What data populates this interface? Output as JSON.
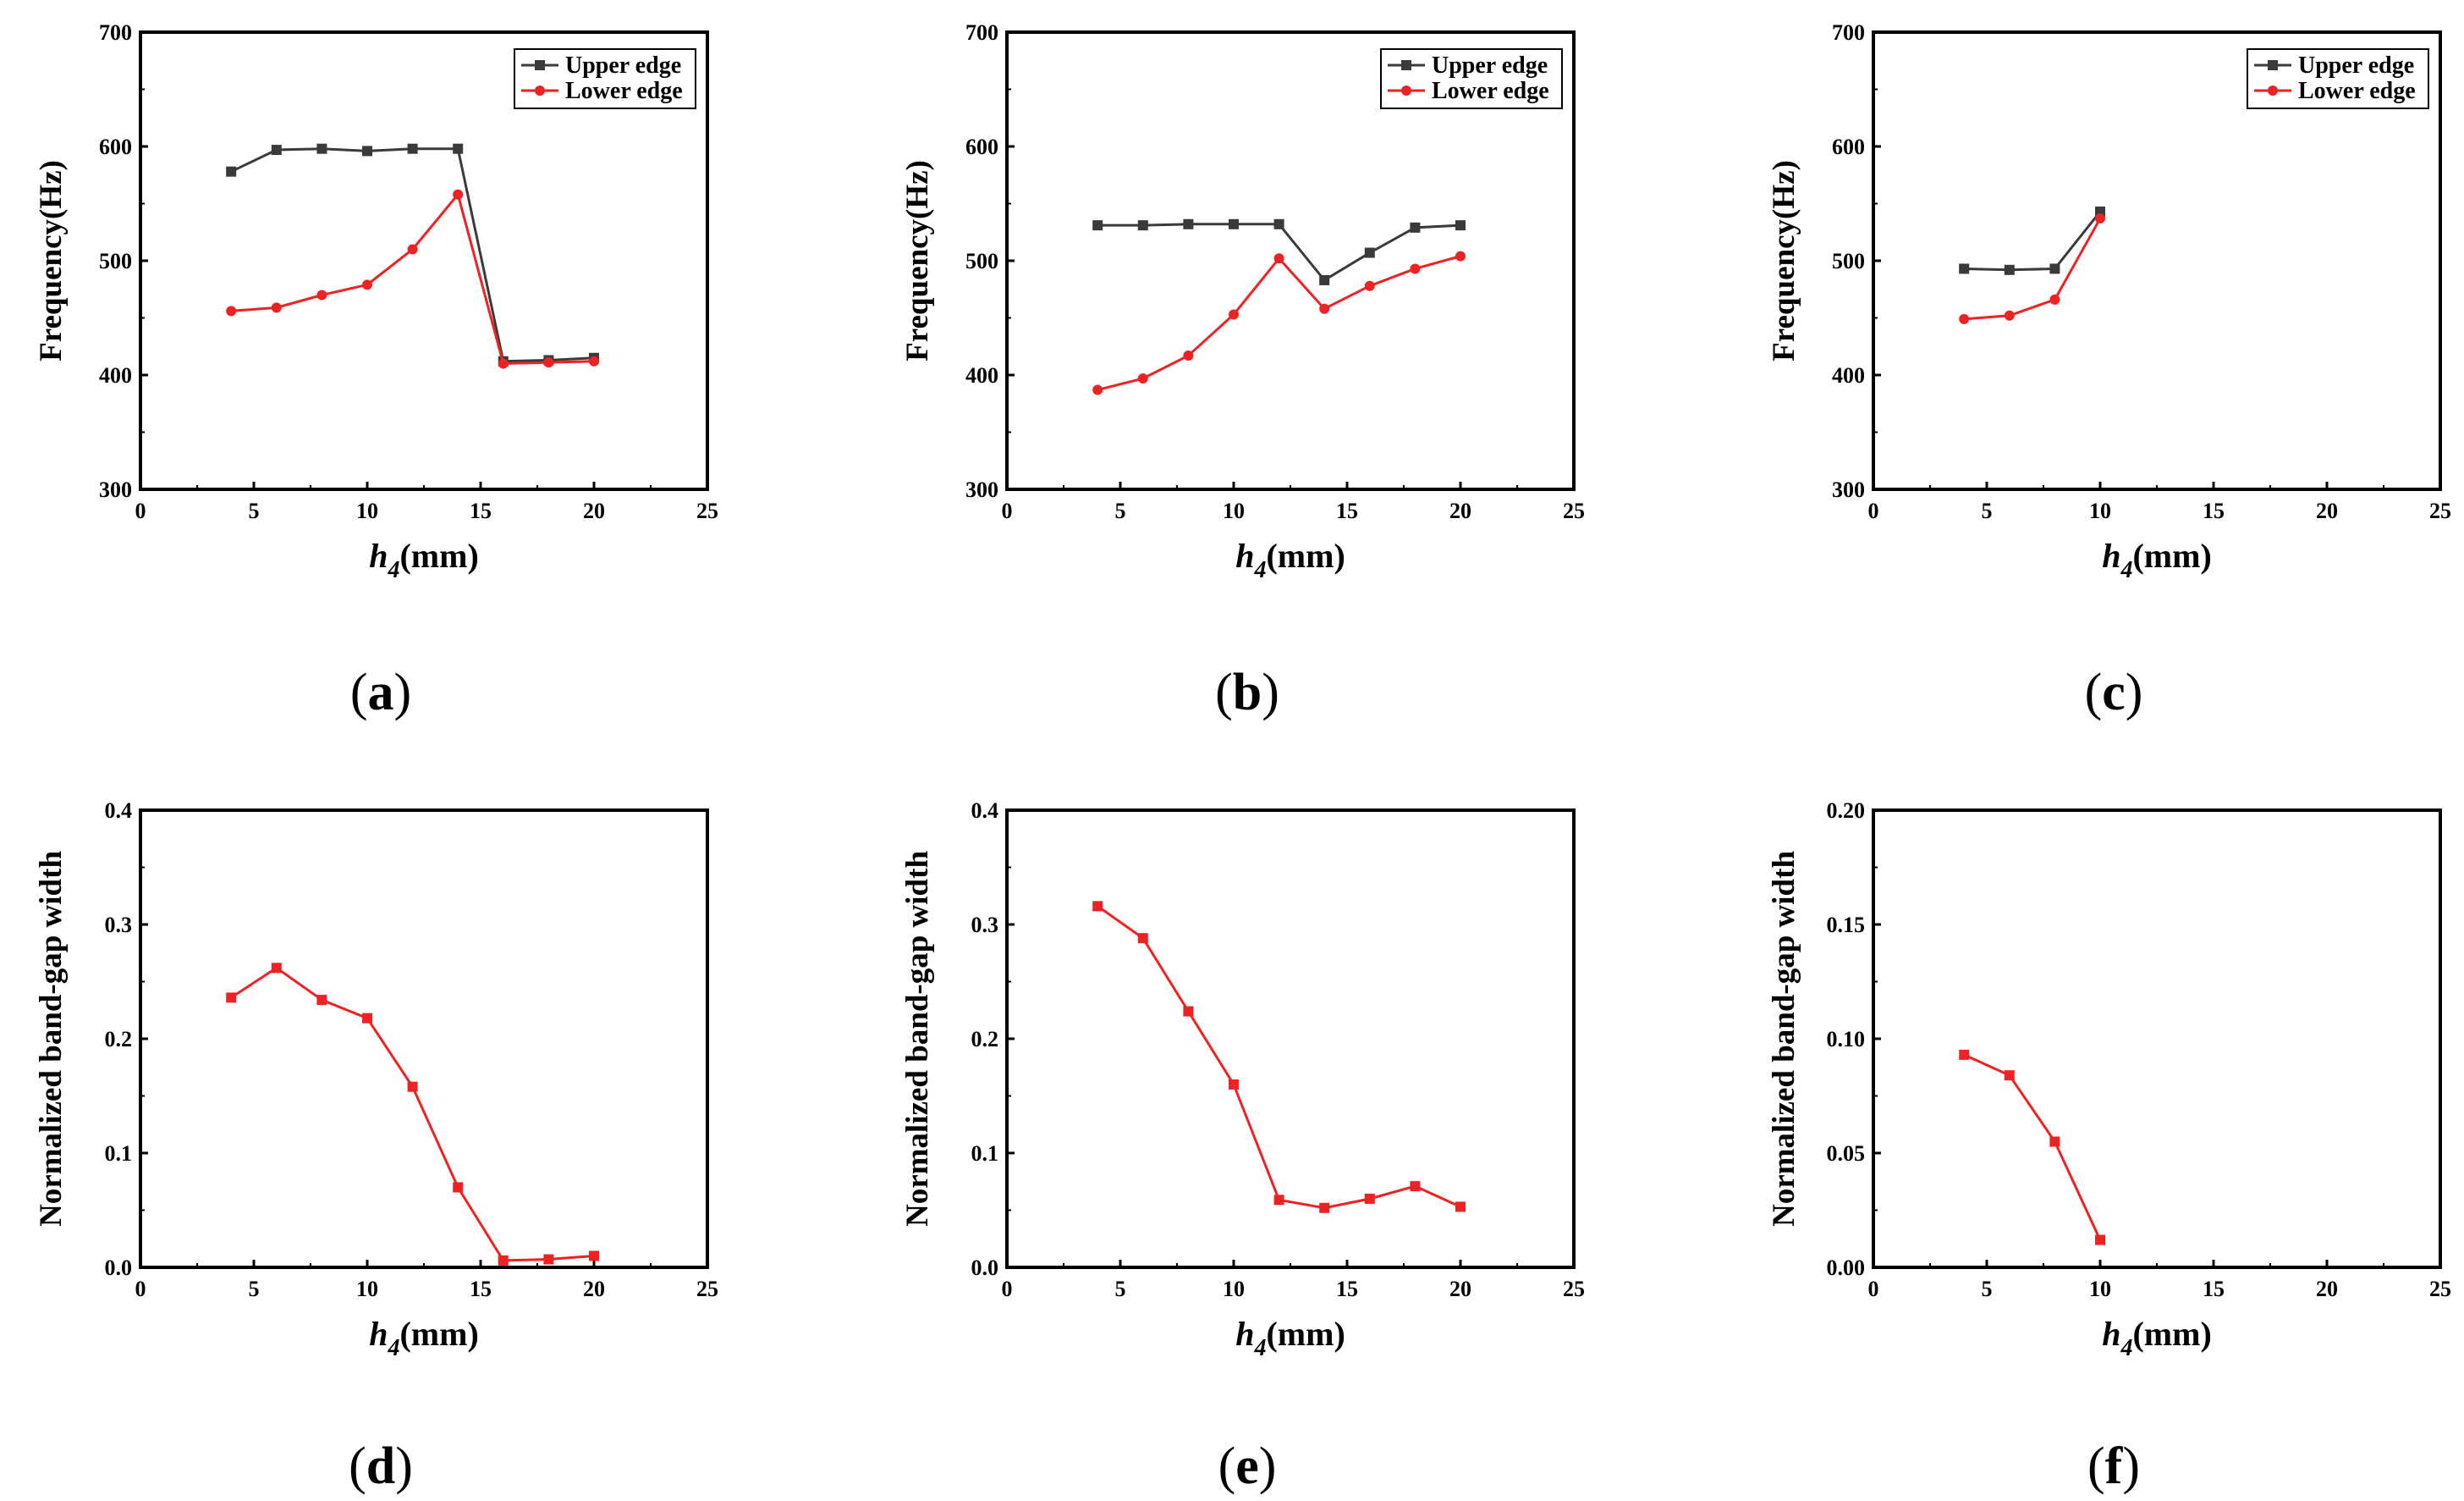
{
  "figure": {
    "colors": {
      "upper": "#3a3a3a",
      "lower": "#ee2222",
      "axis": "#000000"
    }
  },
  "chart_data": [
    {
      "id": "a",
      "label": "a",
      "type": "line",
      "xlabel": {
        "main": "h",
        "sub": "4",
        "unit": "(mm)"
      },
      "ylabel": "Frequency(Hz)",
      "xlim": [
        0,
        25
      ],
      "ylim": [
        300,
        700
      ],
      "xticks": [
        "0",
        "5",
        "10",
        "15",
        "20",
        "25"
      ],
      "yticks": [
        "300",
        "400",
        "500",
        "600",
        "700"
      ],
      "legend": {
        "position": "top-right"
      },
      "series": [
        {
          "name": "Upper edge",
          "marker": "square",
          "color": "#3a3a3a",
          "x": [
            4,
            6,
            8,
            10,
            12,
            14,
            16,
            18,
            20
          ],
          "y": [
            578,
            597,
            598,
            596,
            598,
            598,
            412,
            413,
            415
          ]
        },
        {
          "name": "Lower edge",
          "marker": "circle",
          "color": "#ee2222",
          "x": [
            4,
            6,
            8,
            10,
            12,
            14,
            16,
            18,
            20
          ],
          "y": [
            456,
            459,
            470,
            479,
            510,
            558,
            410,
            411,
            412
          ]
        }
      ]
    },
    {
      "id": "b",
      "label": "b",
      "type": "line",
      "xlabel": {
        "main": "h",
        "sub": "4",
        "unit": "(mm)"
      },
      "ylabel": "Frequency(Hz)",
      "xlim": [
        0,
        25
      ],
      "ylim": [
        300,
        700
      ],
      "xticks": [
        "0",
        "5",
        "10",
        "15",
        "20",
        "25"
      ],
      "yticks": [
        "300",
        "400",
        "500",
        "600",
        "700"
      ],
      "legend": {
        "position": "top-right"
      },
      "series": [
        {
          "name": "Upper edge",
          "marker": "square",
          "color": "#3a3a3a",
          "x": [
            4,
            6,
            8,
            10,
            12,
            14,
            16,
            18,
            20
          ],
          "y": [
            531,
            531,
            532,
            532,
            532,
            483,
            507,
            529,
            531
          ]
        },
        {
          "name": "Lower edge",
          "marker": "circle",
          "color": "#ee2222",
          "x": [
            4,
            6,
            8,
            10,
            12,
            14,
            16,
            18,
            20
          ],
          "y": [
            387,
            397,
            417,
            453,
            502,
            458,
            478,
            493,
            504
          ]
        }
      ]
    },
    {
      "id": "c",
      "label": "c",
      "type": "line",
      "xlabel": {
        "main": "h",
        "sub": "4",
        "unit": "(mm)"
      },
      "ylabel": "Frequency(Hz)",
      "xlim": [
        0,
        25
      ],
      "ylim": [
        300,
        700
      ],
      "xticks": [
        "0",
        "5",
        "10",
        "15",
        "20",
        "25"
      ],
      "yticks": [
        "300",
        "400",
        "500",
        "600",
        "700"
      ],
      "legend": {
        "position": "top-right"
      },
      "series": [
        {
          "name": "Upper edge",
          "marker": "square",
          "color": "#3a3a3a",
          "x": [
            4,
            6,
            8,
            10
          ],
          "y": [
            493,
            492,
            493,
            543
          ]
        },
        {
          "name": "Lower edge",
          "marker": "circle",
          "color": "#ee2222",
          "x": [
            4,
            6,
            8,
            10
          ],
          "y": [
            449,
            452,
            466,
            537
          ]
        }
      ]
    },
    {
      "id": "d",
      "label": "d",
      "type": "line",
      "xlabel": {
        "main": "h",
        "sub": "4",
        "unit": "(mm)"
      },
      "ylabel": "Normalized band-gap width",
      "xlim": [
        0,
        25
      ],
      "ylim": [
        0,
        0.4
      ],
      "xticks": [
        "0",
        "5",
        "10",
        "15",
        "20",
        "25"
      ],
      "yticks": [
        "0.0",
        "0.1",
        "0.2",
        "0.3",
        "0.4"
      ],
      "legend": null,
      "series": [
        {
          "name": "Normalized band-gap width",
          "marker": "square",
          "color": "#ee2222",
          "x": [
            4,
            6,
            8,
            10,
            12,
            14,
            16,
            18,
            20
          ],
          "y": [
            0.236,
            0.262,
            0.234,
            0.218,
            0.158,
            0.07,
            0.006,
            0.007,
            0.01
          ]
        }
      ]
    },
    {
      "id": "e",
      "label": "e",
      "type": "line",
      "xlabel": {
        "main": "h",
        "sub": "4",
        "unit": "(mm)"
      },
      "ylabel": "Normalized band-gap width",
      "xlim": [
        0,
        25
      ],
      "ylim": [
        0,
        0.4
      ],
      "xticks": [
        "0",
        "5",
        "10",
        "15",
        "20",
        "25"
      ],
      "yticks": [
        "0.0",
        "0.1",
        "0.2",
        "0.3",
        "0.4"
      ],
      "legend": null,
      "series": [
        {
          "name": "Normalized band-gap width",
          "marker": "square",
          "color": "#ee2222",
          "x": [
            4,
            6,
            8,
            10,
            12,
            14,
            16,
            18,
            20
          ],
          "y": [
            0.316,
            0.288,
            0.224,
            0.16,
            0.059,
            0.052,
            0.06,
            0.071,
            0.053
          ]
        }
      ]
    },
    {
      "id": "f",
      "label": "f",
      "type": "line",
      "xlabel": {
        "main": "h",
        "sub": "4",
        "unit": "(mm)"
      },
      "ylabel": "Normalized band-gap width",
      "xlim": [
        0,
        25
      ],
      "ylim": [
        0,
        0.2
      ],
      "xticks": [
        "0",
        "5",
        "10",
        "15",
        "20",
        "25"
      ],
      "yticks": [
        "0.00",
        "0.05",
        "0.10",
        "0.15",
        "0.20"
      ],
      "legend": null,
      "series": [
        {
          "name": "Normalized band-gap width",
          "marker": "square",
          "color": "#ee2222",
          "x": [
            4,
            6,
            8,
            10
          ],
          "y": [
            0.093,
            0.084,
            0.055,
            0.012
          ]
        }
      ]
    }
  ]
}
